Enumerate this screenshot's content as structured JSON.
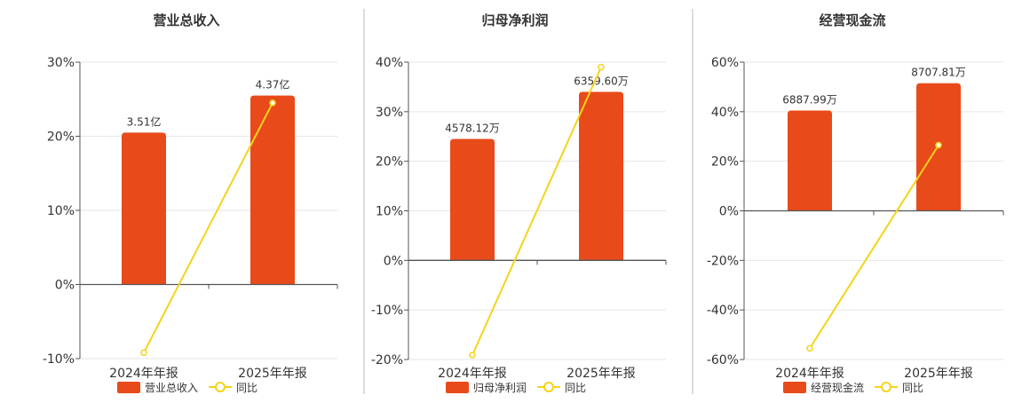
{
  "colors": {
    "bar": "#e84a1a",
    "line": "#f5d31a",
    "axis": "#555555",
    "grid": "#e6e6e6",
    "divider": "#bbbbbb",
    "text": "#333333"
  },
  "chart_data": [
    {
      "type": "bar",
      "title": "营业总收入",
      "categories": [
        "2024年年报",
        "2025年年报"
      ],
      "bar_labels": [
        "3.51亿",
        "4.37亿"
      ],
      "bar_values_pct": [
        20.5,
        25.5
      ],
      "line_values_pct": [
        -9.2,
        24.5
      ],
      "ylim": [
        -10,
        30
      ],
      "yticks": [
        -10,
        0,
        10,
        20,
        30
      ],
      "ytick_labels": [
        "-10%",
        "0%",
        "10%",
        "20%",
        "30%"
      ],
      "legend": [
        "营业总收入",
        "同比"
      ],
      "legend_position": "bottom",
      "grid": true
    },
    {
      "type": "bar",
      "title": "归母净利润",
      "categories": [
        "2024年年报",
        "2025年年报"
      ],
      "bar_labels": [
        "4578.12万",
        "6359.60万"
      ],
      "bar_values_pct": [
        24.5,
        34
      ],
      "line_values_pct": [
        -19.3,
        39
      ],
      "ylim": [
        -20,
        40
      ],
      "yticks": [
        -20,
        -10,
        0,
        10,
        20,
        30,
        40
      ],
      "ytick_labels": [
        "-20%",
        "-10%",
        "0%",
        "10%",
        "20%",
        "30%",
        "40%"
      ],
      "legend": [
        "归母净利润",
        "同比"
      ],
      "legend_position": "bottom",
      "grid": true
    },
    {
      "type": "bar",
      "title": "经营现金流",
      "categories": [
        "2024年年报",
        "2025年年报"
      ],
      "bar_labels": [
        "6887.99万",
        "8707.81万"
      ],
      "bar_values_pct": [
        40.5,
        51.5
      ],
      "line_values_pct": [
        -55.5,
        26.5
      ],
      "ylim": [
        -60,
        60
      ],
      "yticks": [
        -60,
        -40,
        -20,
        0,
        20,
        40,
        60
      ],
      "ytick_labels": [
        "-60%",
        "-40%",
        "-20%",
        "0%",
        "20%",
        "40%",
        "60%"
      ],
      "legend": [
        "经营现金流",
        "同比"
      ],
      "legend_position": "bottom",
      "grid": true
    }
  ]
}
